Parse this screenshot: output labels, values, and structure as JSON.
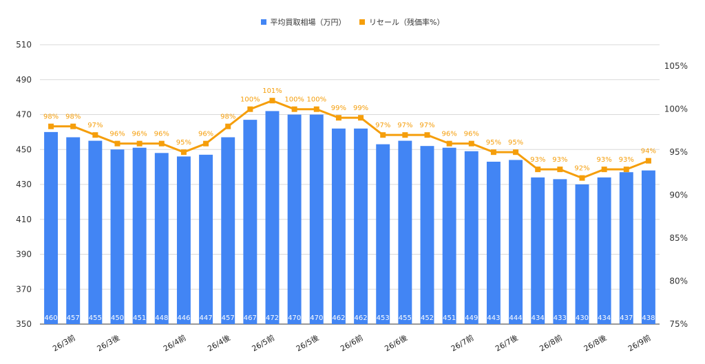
{
  "chart_data": {
    "type": "bar",
    "legend_position": "top",
    "grid": true,
    "series": [
      {
        "name": "平均買取相場（万円）",
        "type": "bar",
        "axis": "left",
        "color": "#4285f4",
        "values": [
          460,
          457,
          455,
          450,
          451,
          448,
          446,
          447,
          457,
          467,
          472,
          470,
          470,
          462,
          462,
          453,
          455,
          452,
          451,
          449,
          443,
          444,
          434,
          433,
          430,
          434,
          437,
          438
        ],
        "labels": [
          "460",
          "457",
          "455",
          "450",
          "451",
          "448",
          "446",
          "447",
          "457",
          "467",
          "472",
          "470",
          "470",
          "462",
          "462",
          "453",
          "455",
          "452",
          "451",
          "449",
          "443",
          "444",
          "434",
          "433",
          "430",
          "434",
          "437",
          "438"
        ]
      },
      {
        "name": "リセール（残価率%）",
        "type": "line",
        "axis": "right",
        "color": "#f59e0b",
        "values": [
          98,
          98,
          97,
          96,
          96,
          96,
          95,
          96,
          98,
          100,
          101,
          100,
          100,
          99,
          99,
          97,
          97,
          97,
          96,
          96,
          95,
          95,
          93,
          93,
          92,
          93,
          93,
          94
        ],
        "labels": [
          "98%",
          "98%",
          "97%",
          "96%",
          "96%",
          "96%",
          "95%",
          "96%",
          "98%",
          "100%",
          "101%",
          "100%",
          "100%",
          "99%",
          "99%",
          "97%",
          "97%",
          "97%",
          "96%",
          "96%",
          "95%",
          "95%",
          "93%",
          "93%",
          "92%",
          "93%",
          "93%",
          "94%"
        ]
      }
    ],
    "x_tick_labels": [
      "26/3前",
      "26/3後",
      "26/4前",
      "26/4後",
      "26/5前",
      "26/5後",
      "26/6前",
      "26/6後",
      "26/7前",
      "26/7後",
      "26/8前",
      "26/8後",
      "26/9前"
    ],
    "x_tick_indices": [
      1,
      3,
      6,
      8,
      10,
      12,
      14,
      16,
      19,
      21,
      23,
      25,
      27
    ],
    "y_left": {
      "ylim": [
        350,
        510
      ],
      "ticks": [
        "350",
        "370",
        "390",
        "410",
        "430",
        "450",
        "470",
        "490",
        "510"
      ]
    },
    "y_right": {
      "ylim": [
        75,
        107.5
      ],
      "ticks": [
        "75%",
        "80%",
        "85%",
        "90%",
        "95%",
        "100%",
        "105%"
      ],
      "tick_values": [
        75,
        80,
        85,
        90,
        95,
        100,
        105
      ]
    }
  }
}
